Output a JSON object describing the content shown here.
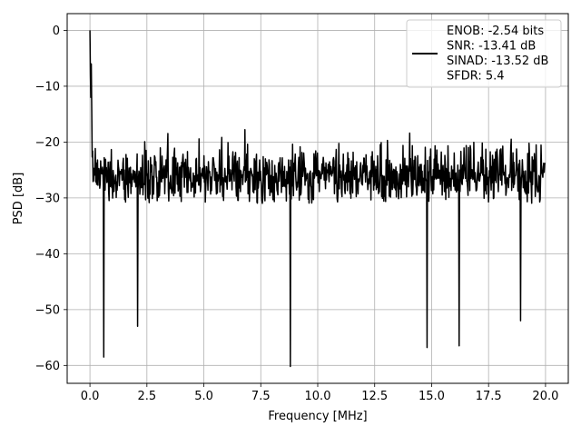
{
  "chart_data": {
    "type": "line",
    "title": "",
    "xlabel": "Frequency [MHz]",
    "ylabel": "PSD [dB]",
    "xlim": [
      -1.0,
      21.0
    ],
    "ylim": [
      -63.2,
      3.0
    ],
    "xticks": [
      0.0,
      2.5,
      5.0,
      7.5,
      10.0,
      12.5,
      15.0,
      17.5,
      20.0
    ],
    "xtick_labels": [
      "0.0",
      "2.5",
      "5.0",
      "7.5",
      "10.0",
      "12.5",
      "15.0",
      "17.5",
      "20.0"
    ],
    "yticks": [
      0,
      -10,
      -20,
      -30,
      -40,
      -50,
      -60
    ],
    "ytick_labels": [
      "0",
      "−10",
      "−20",
      "−30",
      "−40",
      "−50",
      "−60"
    ],
    "grid": true,
    "legend_position": "top-right",
    "series": [
      {
        "name": "ENOB: -2.54 bits\nSNR: -13.41 dB\nSINAD: -13.52 dB\nSFDR: 5.4",
        "color": "#000000",
        "x_range": [
          0.0,
          20.0
        ],
        "num_points": 1024,
        "peak": {
          "x": 0.0,
          "y": 0.0
        },
        "noise_floor_mean_db": -27,
        "noise_upper_envelope_db": -18,
        "noise_lower_envelope_db": -40,
        "notable_minima": [
          {
            "x": 0.6,
            "y": -58.5
          },
          {
            "x": 2.1,
            "y": -53.0
          },
          {
            "x": 8.8,
            "y": -60.2
          },
          {
            "x": 14.8,
            "y": -56.8
          },
          {
            "x": 16.2,
            "y": -56.5
          },
          {
            "x": 18.9,
            "y": -52.0
          }
        ]
      }
    ]
  }
}
